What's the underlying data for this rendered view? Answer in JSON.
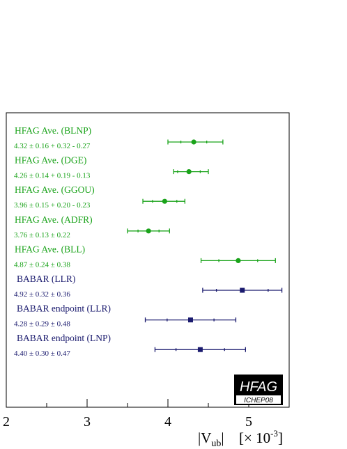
{
  "chart_data": {
    "type": "scatter",
    "xlabel_main": "|V",
    "xlabel_sub": "ub",
    "xlabel_unit": "[× 10",
    "xlabel_exp": "-3",
    "xlabel_close": "]",
    "xlim": [
      2,
      5.5
    ],
    "ticks": [
      {
        "value": 2,
        "label": "2"
      },
      {
        "value": 3,
        "label": "3"
      },
      {
        "value": 4,
        "label": "4"
      },
      {
        "value": 5,
        "label": "5"
      }
    ],
    "minor_ticks": [
      2.5,
      3.5,
      4.5
    ],
    "measurements": [
      {
        "name": "HFAG Ave. (BLNP)",
        "value_label": "4.32 ± 0.16 + 0.32 - 0.27",
        "value": 4.32,
        "stat_lo": 0.16,
        "stat_hi": 0.16,
        "tot_lo": 0.32,
        "tot_hi": 0.36,
        "color": "#1aa31a",
        "marker": "circle"
      },
      {
        "name": "HFAG Ave. (DGE)",
        "value_label": "4.26 ± 0.14 + 0.19 - 0.13",
        "value": 4.26,
        "stat_lo": 0.14,
        "stat_hi": 0.14,
        "tot_lo": 0.19,
        "tot_hi": 0.24,
        "color": "#1aa31a",
        "marker": "circle"
      },
      {
        "name": "HFAG Ave. (GGOU)",
        "value_label": "3.96 ± 0.15 + 0.20 - 0.23",
        "value": 3.96,
        "stat_lo": 0.15,
        "stat_hi": 0.15,
        "tot_lo": 0.27,
        "tot_hi": 0.25,
        "color": "#1aa31a",
        "marker": "circle"
      },
      {
        "name": "HFAG Ave. (ADFR)",
        "value_label": "3.76 ± 0.13 ± 0.22",
        "value": 3.76,
        "stat_lo": 0.13,
        "stat_hi": 0.13,
        "tot_lo": 0.26,
        "tot_hi": 0.26,
        "color": "#1aa31a",
        "marker": "circle"
      },
      {
        "name": "HFAG Ave. (BLL)",
        "value_label": "4.87 ± 0.24 ± 0.38",
        "value": 4.87,
        "stat_lo": 0.24,
        "stat_hi": 0.24,
        "tot_lo": 0.46,
        "tot_hi": 0.46,
        "color": "#1aa31a",
        "marker": "circle"
      },
      {
        "name": "BABAR (LLR)",
        "value_label": "4.92 ± 0.32 ± 0.36",
        "value": 4.92,
        "stat_lo": 0.32,
        "stat_hi": 0.32,
        "tot_lo": 0.49,
        "tot_hi": 0.49,
        "color": "#1a1a6e",
        "marker": "square"
      },
      {
        "name": "BABAR endpoint (LLR)",
        "value_label": "4.28 ± 0.29 ± 0.48",
        "value": 4.28,
        "stat_lo": 0.29,
        "stat_hi": 0.29,
        "tot_lo": 0.56,
        "tot_hi": 0.56,
        "color": "#1a1a6e",
        "marker": "square"
      },
      {
        "name": "BABAR endpoint (LNP)",
        "value_label": "4.40 ± 0.30 ± 0.47",
        "value": 4.4,
        "stat_lo": 0.3,
        "stat_hi": 0.3,
        "tot_lo": 0.56,
        "tot_hi": 0.56,
        "color": "#1a1a6e",
        "marker": "square"
      }
    ],
    "badge": {
      "title": "HFAG",
      "subtitle": "ICHEP08"
    }
  }
}
